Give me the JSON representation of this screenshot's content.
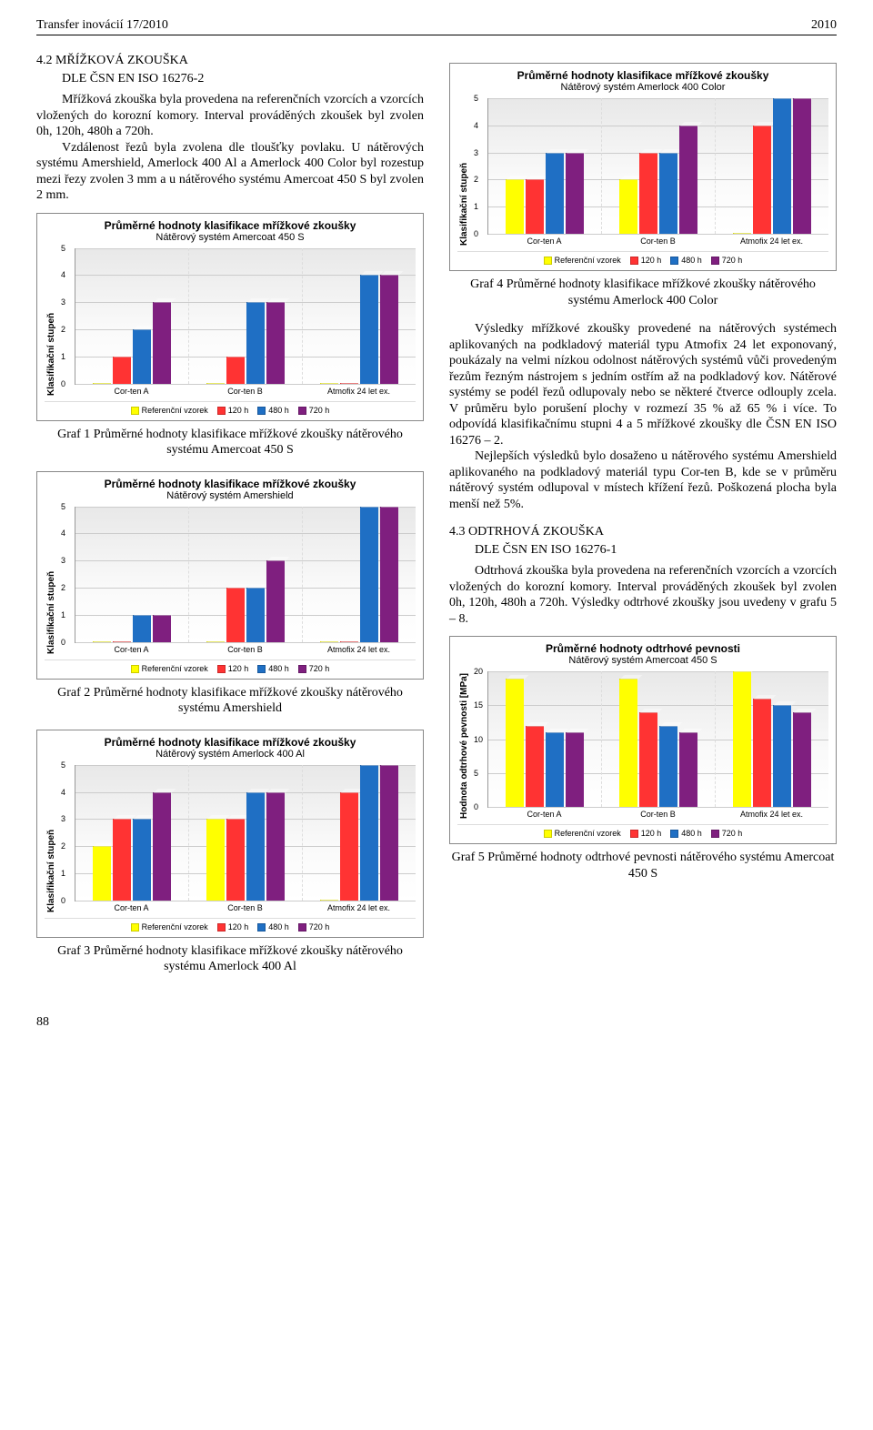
{
  "header": {
    "journal": "Transfer inovácií 17/2010",
    "year": "2010"
  },
  "chart_common": {
    "categories": [
      "Cor-ten A",
      "Cor-ten B",
      "Atmofix 24 let ex."
    ],
    "series_labels": [
      "Referenční vzorek",
      "120 h",
      "480 h",
      "720 h"
    ],
    "series_colors": [
      "#ffff00",
      "#ff3333",
      "#1f6fc4",
      "#7f1f7f"
    ],
    "ylabel_klasif": "Klasifikační stupeň",
    "title_klasif": "Průměrné hodnoty klasifikace mřížkové zkoušky",
    "title_odtrh": "Průměrné hodnoty odtrhové pevnosti",
    "grid_color": "#cccccc",
    "bg_gradient_top": "#e8e8e8",
    "bg_gradient_bottom": "#ffffff",
    "ylim_klasif": [
      0,
      5
    ],
    "ystep_klasif": 1,
    "title_fontsize": 12,
    "subtitle_fontsize": 11,
    "label_fontsize": 10,
    "tick_fontsize": 9
  },
  "charts": {
    "graf1": {
      "subtitle": "Nátěrový systém Amercoat 450 S",
      "data": [
        [
          0,
          1,
          2,
          3
        ],
        [
          0,
          1,
          3,
          3
        ],
        [
          0,
          0,
          4,
          4
        ]
      ]
    },
    "graf2": {
      "subtitle": "Nátěrový systém Amershield",
      "data": [
        [
          0,
          0,
          1,
          1
        ],
        [
          0,
          2,
          2,
          3
        ],
        [
          0,
          0,
          5,
          5
        ]
      ]
    },
    "graf3": {
      "subtitle": "Nátěrový systém Amerlock 400 Al",
      "data": [
        [
          2,
          3,
          3,
          4
        ],
        [
          3,
          3,
          4,
          4
        ],
        [
          0,
          4,
          5,
          5
        ]
      ]
    },
    "graf4": {
      "subtitle": "Nátěrový systém Amerlock 400 Color",
      "data": [
        [
          2,
          2,
          3,
          3
        ],
        [
          2,
          3,
          3,
          4
        ],
        [
          0,
          4,
          5,
          5
        ]
      ]
    },
    "graf5": {
      "subtitle": "Nátěrový systém Amercoat 450 S",
      "ylabel": "Hodnota odtrhové pevnosti [MPa]",
      "ylim": [
        0,
        20
      ],
      "ystep": 5,
      "data": [
        [
          19,
          12,
          11,
          11
        ],
        [
          19,
          14,
          12,
          11
        ],
        [
          20,
          16,
          15,
          14
        ]
      ]
    }
  },
  "captions": {
    "g1": "Graf 1 Průměrné hodnoty klasifikace mřížkové zkoušky nátěrového systému Amercoat 450 S",
    "g2": "Graf 2 Průměrné hodnoty klasifikace mřížkové zkoušky nátěrového systému Amershield",
    "g3": "Graf 3 Průměrné hodnoty klasifikace mřížkové zkoušky nátěrového systému Amerlock 400 Al",
    "g4": "Graf 4 Průměrné hodnoty klasifikace mřížkové zkoušky nátěrového systému Amerlock 400 Color",
    "g5": "Graf 5 Průměrné hodnoty odtrhové pevnosti nátěrového systému Amercoat 450 S"
  },
  "text": {
    "s42_head": "4.2 MŘÍŽKOVÁ ZKOUŠKA",
    "s42_sub": "DLE ČSN EN ISO 16276-2",
    "s42_p1": "Mřížková zkouška byla provedena na referenčních vzorcích a vzorcích vložených do korozní komory. Interval prováděných zkoušek byl zvolen 0h, 120h, 480h a 720h.",
    "s42_p2": "Vzdálenost řezů byla zvolena dle tloušťky povlaku. U nátěrových systému Amershield, Amerlock 400 Al a Amerlock 400 Color byl rozestup mezi řezy zvolen 3 mm a u nátěrového systému Amercoat 450 S byl zvolen 2 mm.",
    "r_p1": "Výsledky mřížkové zkoušky provedené na nátěrových systémech aplikovaných na podkladový materiál typu Atmofix 24 let exponovaný, poukázaly na velmi nízkou odolnost nátěrových systémů vůči provedeným řezům řezným nástrojem s jedním ostřím až na podkladový kov. Nátěrové systémy se podél řezů odlupovaly nebo se některé čtverce odlouply zcela. V průměru bylo porušení plochy v rozmezí 35 % až 65 % i více. To odpovídá klasifikačnímu stupni 4 a 5 mřížkové zkoušky dle ČSN EN ISO 16276 – 2.",
    "r_p2": "Nejlepších výsledků bylo dosaženo u nátěrového systému Amershield aplikovaného na podkladový materiál typu Cor-ten B, kde se v průměru nátěrový systém odlupoval v místech křížení řezů. Poškozená plocha byla menší než 5%.",
    "s43_head": "4.3 ODTRHOVÁ ZKOUŠKA",
    "s43_sub": "DLE ČSN EN ISO 16276-1",
    "s43_p1": "Odtrhová zkouška byla provedena na referenčních vzorcích a vzorcích vložených do korozní komory. Interval prováděných zkoušek byl zvolen 0h, 120h, 480h a 720h. Výsledky odtrhové zkoušky jsou uvedeny v grafu 5 – 8."
  },
  "page_number": "88"
}
